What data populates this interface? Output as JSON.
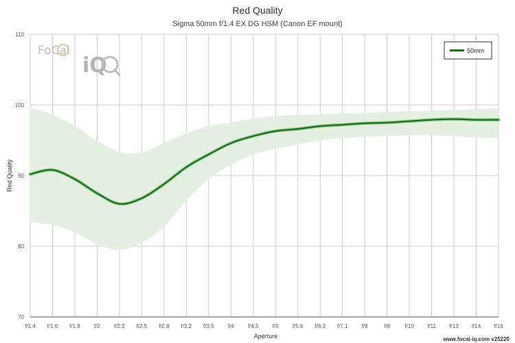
{
  "chart_data": {
    "type": "line",
    "title": "Red Quality",
    "subtitle": "Sigma 50mm f/1.4 EX DG HSM (Canon EF mount)",
    "xlabel": "Aperture",
    "ylabel": "Red Quality",
    "x": [
      "f/1.4",
      "f/1.6",
      "f/1.8",
      "f/2",
      "f/2.2",
      "f/2.5",
      "f/2.8",
      "f/3.2",
      "f/3.5",
      "f/4",
      "f/4.5",
      "f/5",
      "f/5.6",
      "f/6.3",
      "f/7.1",
      "f/8",
      "f/9",
      "f/10",
      "f/11",
      "f/13",
      "f/14",
      "f/16"
    ],
    "ylim": [
      70,
      110
    ],
    "yticks": [
      70,
      80,
      90,
      100,
      110
    ],
    "grid": true,
    "legend_position": "top-right",
    "series": [
      {
        "name": "50mm",
        "color": "#1a6e1a",
        "values": [
          90.2,
          90.8,
          89.5,
          87.5,
          86.0,
          86.8,
          88.8,
          91.2,
          93.0,
          94.6,
          95.6,
          96.3,
          96.6,
          97.0,
          97.2,
          97.4,
          97.5,
          97.7,
          97.9,
          98.0,
          97.9,
          97.9
        ],
        "band_upper": [
          99.6,
          98.6,
          97.0,
          95.0,
          93.3,
          93.3,
          94.6,
          96.0,
          97.0,
          97.5,
          98.1,
          98.4,
          98.6,
          98.7,
          98.8,
          98.9,
          99.0,
          99.1,
          99.2,
          99.3,
          99.4,
          99.5
        ],
        "band_lower": [
          83.4,
          83.0,
          82.0,
          80.3,
          79.5,
          80.5,
          82.8,
          86.5,
          89.5,
          91.5,
          93.0,
          93.8,
          94.4,
          95.0,
          95.3,
          95.5,
          95.6,
          95.7,
          95.7,
          95.6,
          95.4,
          95.3
        ],
        "band_color": "#e4f0e2"
      }
    ]
  },
  "branding": {
    "logo_part1": "FoCal",
    "logo_part2": "iQ",
    "footer": "www.focal-iq.com  v25220"
  },
  "colors": {
    "grid": "#cccccc",
    "axis": "#555555"
  }
}
